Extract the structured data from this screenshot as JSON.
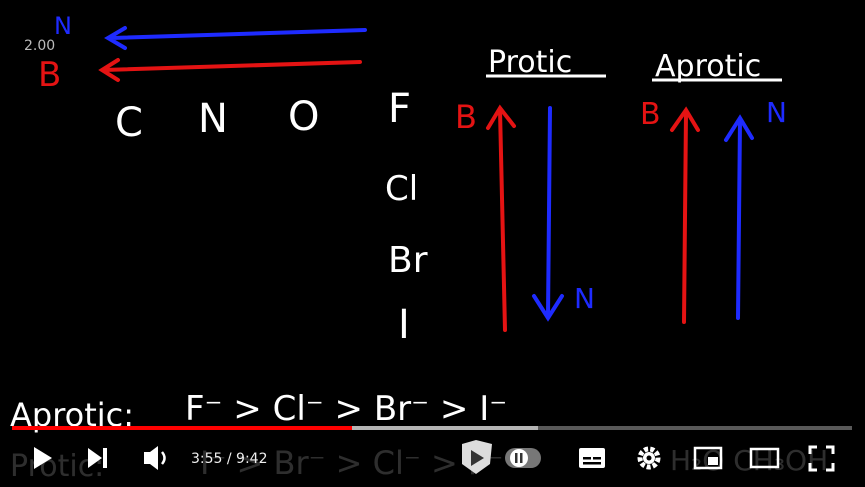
{
  "video": {
    "speed_overlay": "2.00",
    "legend": {
      "top": "N",
      "bottom": "B"
    },
    "period_row": [
      "C",
      "N",
      "O",
      "F"
    ],
    "group_column": [
      "Cl",
      "Br",
      "I"
    ],
    "protic": {
      "title": "Protic",
      "left_label": "B",
      "right_label": "N"
    },
    "aprotic": {
      "title": "Aprotic",
      "left_label": "B",
      "right_label": "N"
    },
    "aprotic_line": {
      "label": "Aprotic:",
      "order": "F⁻ > Cl⁻ > Br⁻ > I⁻"
    },
    "protic_line": {
      "label": "Protic:",
      "order": "I⁻ > Br⁻ > Cl⁻ > F⁻",
      "solvents": "H₂O  CH₃OH"
    }
  },
  "player": {
    "time": "3:55 / 9:42"
  }
}
